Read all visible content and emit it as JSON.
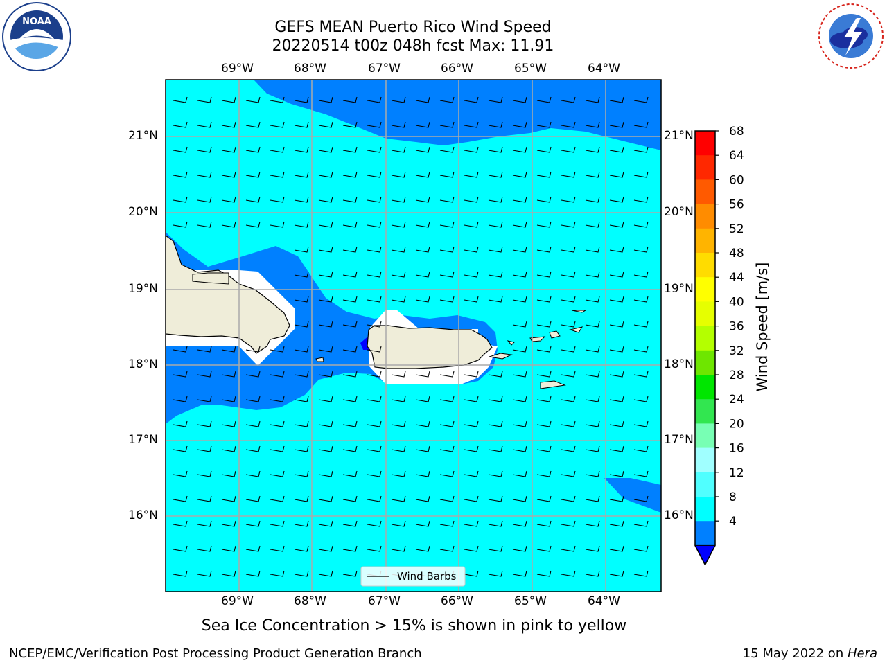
{
  "header": {
    "title_line1": "GEFS MEAN Puerto Rico Wind Speed",
    "title_line2": "20220514 t00z 048h fcst   Max: 11.91"
  },
  "logos": {
    "left": "NOAA",
    "right": "NATIONAL WEATHER SERVICE"
  },
  "map": {
    "lon_labels": [
      "69°W",
      "68°W",
      "67°W",
      "66°W",
      "65°W",
      "64°W"
    ],
    "lat_labels": [
      "21°N",
      "20°N",
      "19°N",
      "18°N",
      "17°N",
      "16°N"
    ],
    "legend_label": "Wind Barbs",
    "fill_colors": {
      "ocean": "#00ffff",
      "low_wind": "#0080ff",
      "very_low_wind": "#0000ff",
      "land": "#efedd9"
    }
  },
  "colorbar": {
    "label": "Wind Speed [m/s]",
    "ticks": [
      "68",
      "64",
      "60",
      "56",
      "52",
      "48",
      "44",
      "40",
      "36",
      "32",
      "28",
      "24",
      "20",
      "16",
      "12",
      "8",
      "4"
    ],
    "colors": [
      "#ff0000",
      "#ff2800",
      "#ff5a00",
      "#ff8c00",
      "#ffb400",
      "#ffdc00",
      "#ffff00",
      "#e6ff00",
      "#b4ff00",
      "#6ee600",
      "#00e600",
      "#32e650",
      "#78ffb4",
      "#a0ffff",
      "#50ffff",
      "#00ffff",
      "#0080ff"
    ],
    "arrow_color": "#0000ff"
  },
  "caption": "Sea Ice Concentration > 15% is shown in pink to yellow",
  "footer": {
    "left": "NCEP/EMC/Verification Post Processing Product Generation Branch",
    "date": "15 May 2022 on ",
    "machine": "Hera"
  }
}
